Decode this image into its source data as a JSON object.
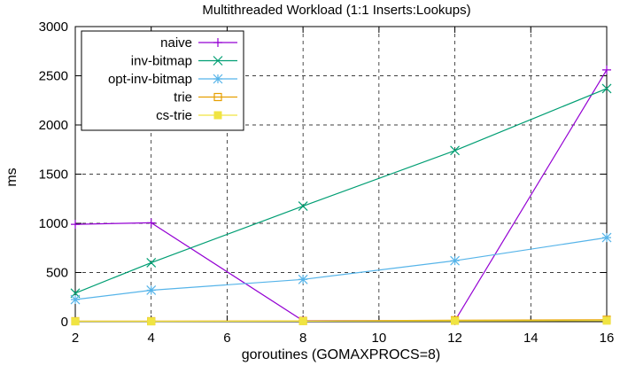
{
  "chart_data": {
    "type": "line",
    "title": "Multithreaded Workload (1:1 Inserts:Lookups)",
    "xlabel": "goroutines (GOMAXPROCS=8)",
    "ylabel": "ms",
    "xlim": [
      2,
      16
    ],
    "ylim": [
      0,
      3000
    ],
    "xticks": [
      "2",
      "4",
      "6",
      "8",
      "10",
      "12",
      "14",
      "16"
    ],
    "yticks": [
      "0",
      "500",
      "1000",
      "1500",
      "2000",
      "2500",
      "3000"
    ],
    "grid": true,
    "legend_position": "top-left",
    "x": [
      2,
      4,
      8,
      12,
      16
    ],
    "series": [
      {
        "name": "naive",
        "color": "#9400d3",
        "marker": "plus",
        "values": [
          990,
          1005,
          10,
          10,
          2560
        ]
      },
      {
        "name": "inv-bitmap",
        "color": "#009e73",
        "marker": "cross",
        "values": [
          290,
          600,
          1175,
          1740,
          2370
        ]
      },
      {
        "name": "opt-inv-bitmap",
        "color": "#56b4e9",
        "marker": "star",
        "values": [
          225,
          320,
          430,
          620,
          855
        ]
      },
      {
        "name": "trie",
        "color": "#e69f00",
        "marker": "open-square",
        "values": [
          5,
          5,
          8,
          15,
          20
        ]
      },
      {
        "name": "cs-trie",
        "color": "#f0e442",
        "marker": "filled-square",
        "values": [
          3,
          3,
          5,
          8,
          10
        ]
      }
    ]
  }
}
